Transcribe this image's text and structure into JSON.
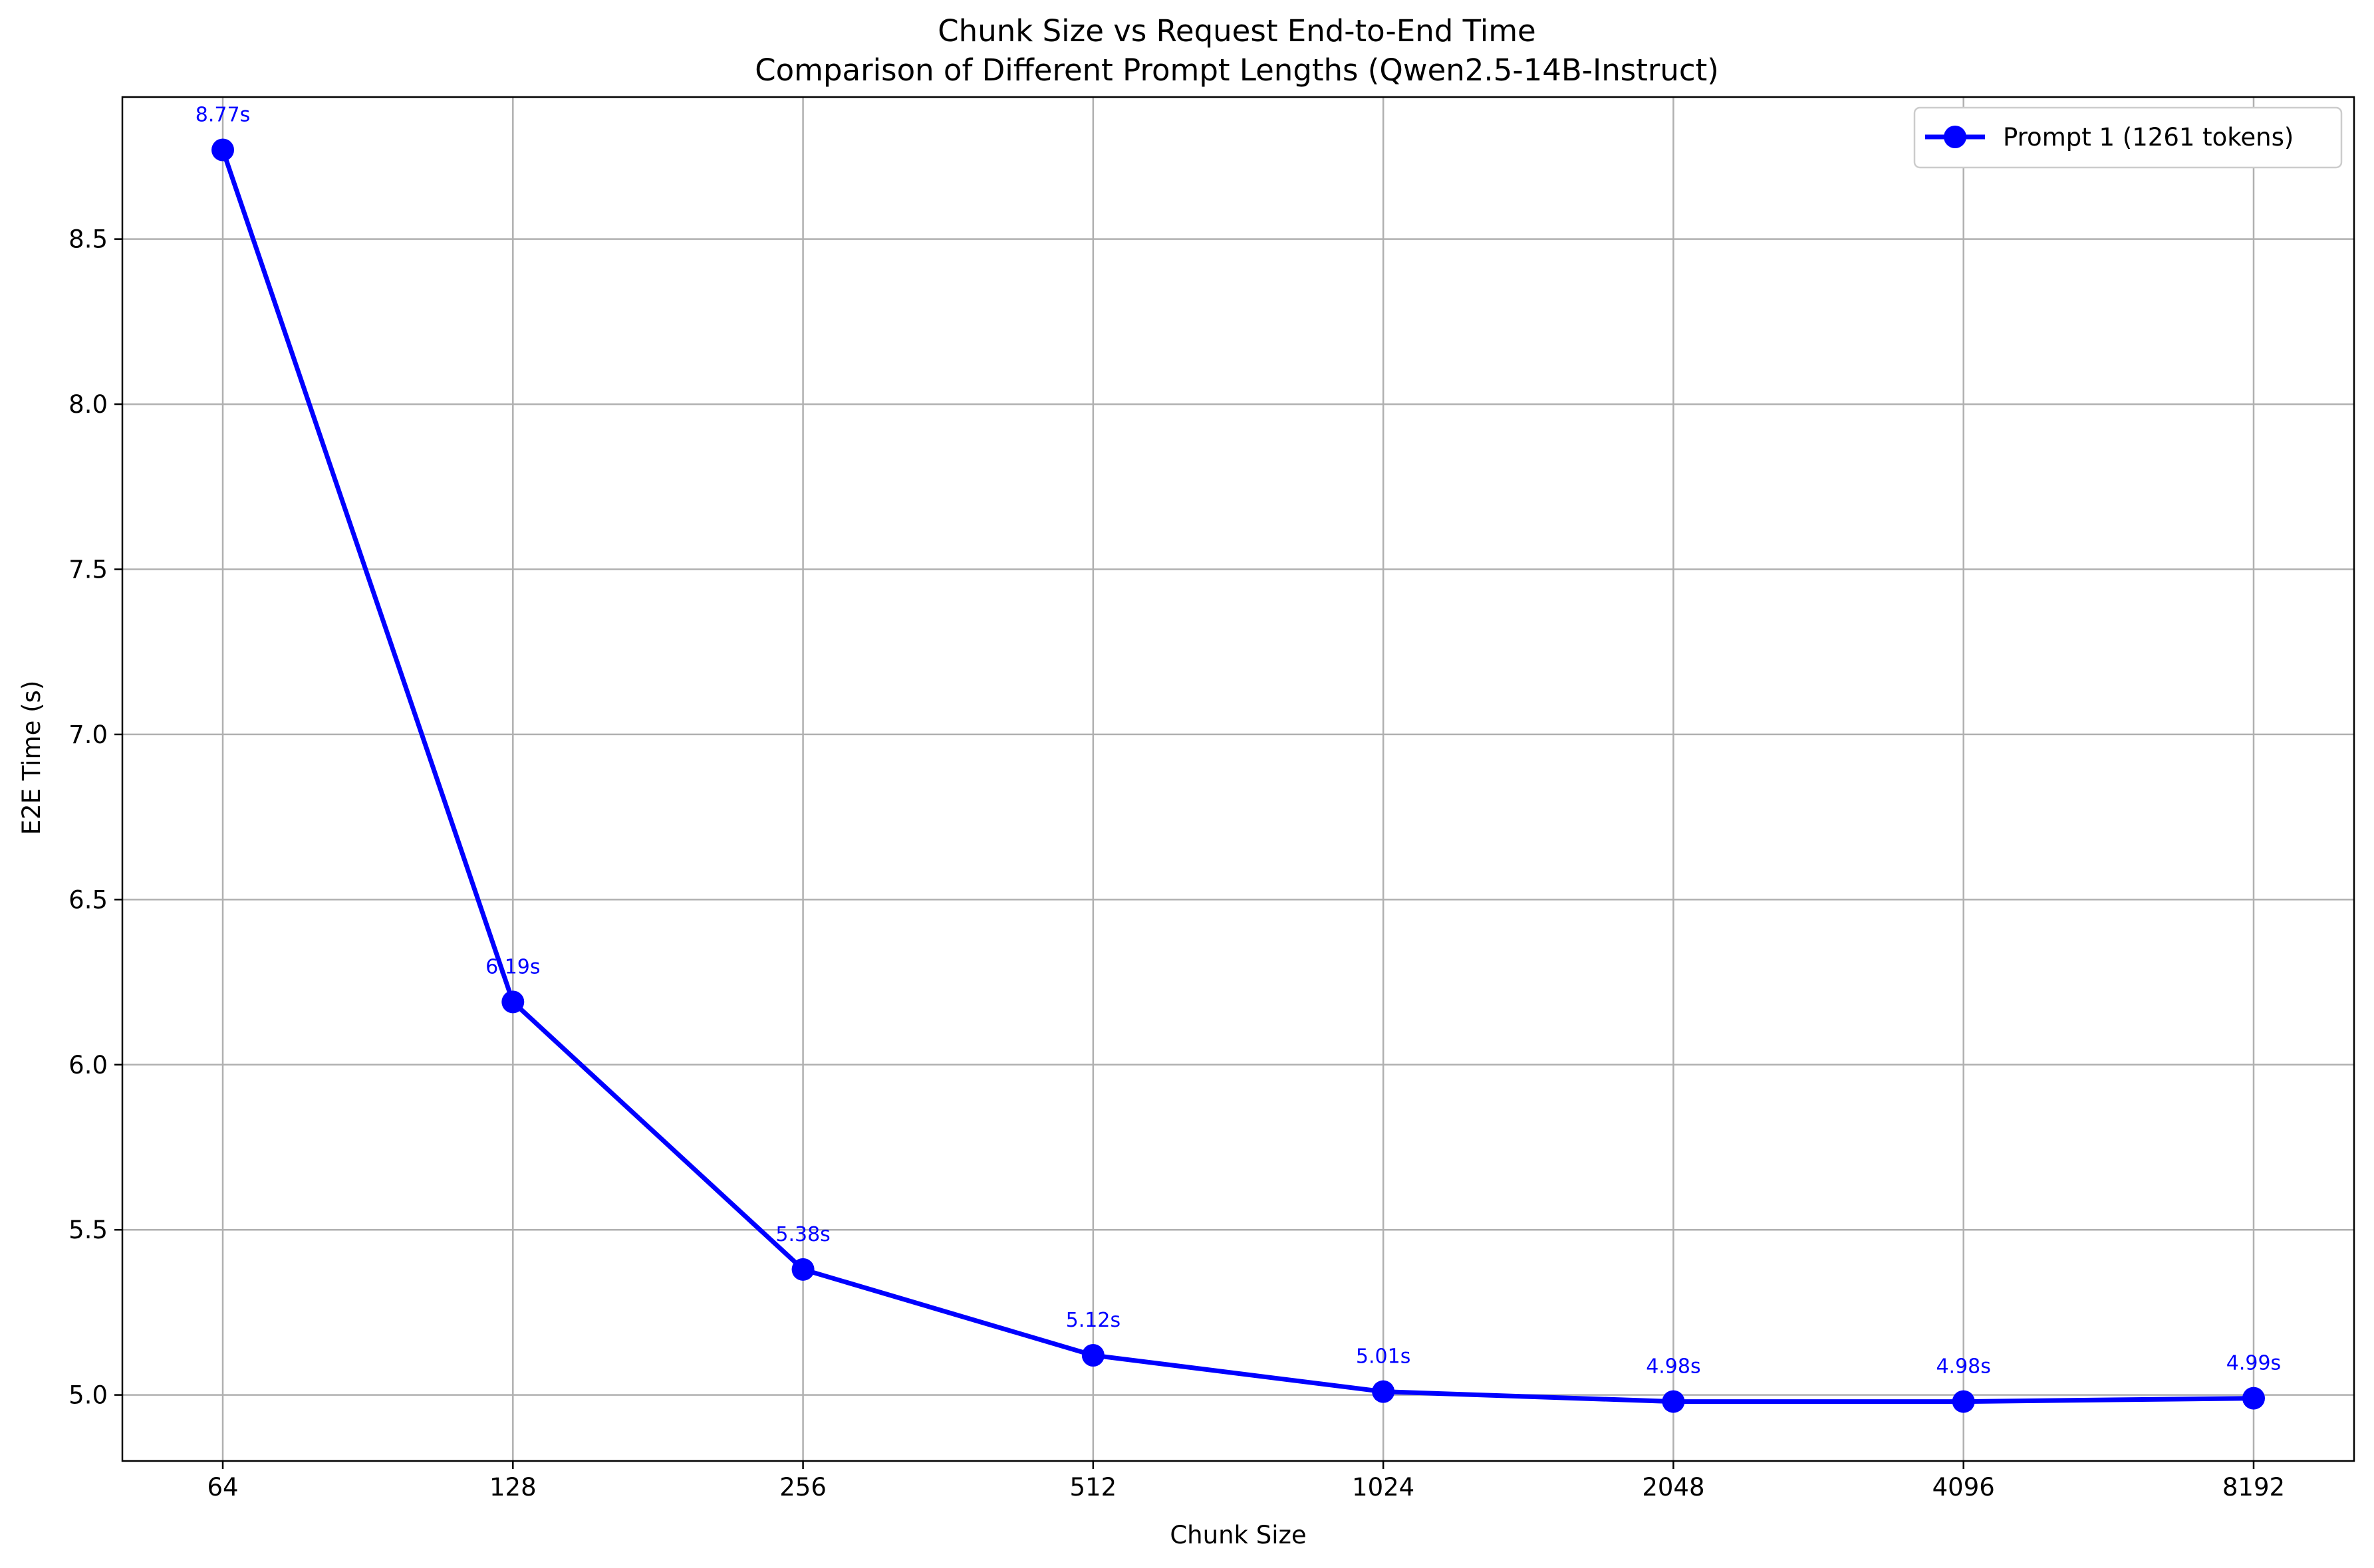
{
  "chart_data": {
    "type": "line",
    "title": "Chunk Size vs Request End-to-End Time",
    "subtitle": "Comparison of Different Prompt Lengths (Qwen2.5-14B-Instruct)",
    "xlabel": "Chunk Size",
    "ylabel": "E2E Time (s)",
    "categories": [
      "64",
      "128",
      "256",
      "512",
      "1024",
      "2048",
      "4096",
      "8192"
    ],
    "y_ticks": [
      "5.0",
      "5.5",
      "6.0",
      "6.5",
      "7.0",
      "7.5",
      "8.0",
      "8.5"
    ],
    "y_tick_values": [
      5.0,
      5.5,
      6.0,
      6.5,
      7.0,
      7.5,
      8.0,
      8.5
    ],
    "ylim": [
      4.8,
      8.93
    ],
    "grid": true,
    "legend_position": "top-right",
    "series": [
      {
        "name": "Prompt 1 (1261 tokens)",
        "color": "#0000ff",
        "marker": "circle",
        "values": [
          8.77,
          6.19,
          5.38,
          5.12,
          5.01,
          4.98,
          4.98,
          4.99
        ],
        "labels": [
          "8.77s",
          "6.19s",
          "5.38s",
          "5.12s",
          "5.01s",
          "4.98s",
          "4.98s",
          "4.99s"
        ]
      }
    ]
  }
}
